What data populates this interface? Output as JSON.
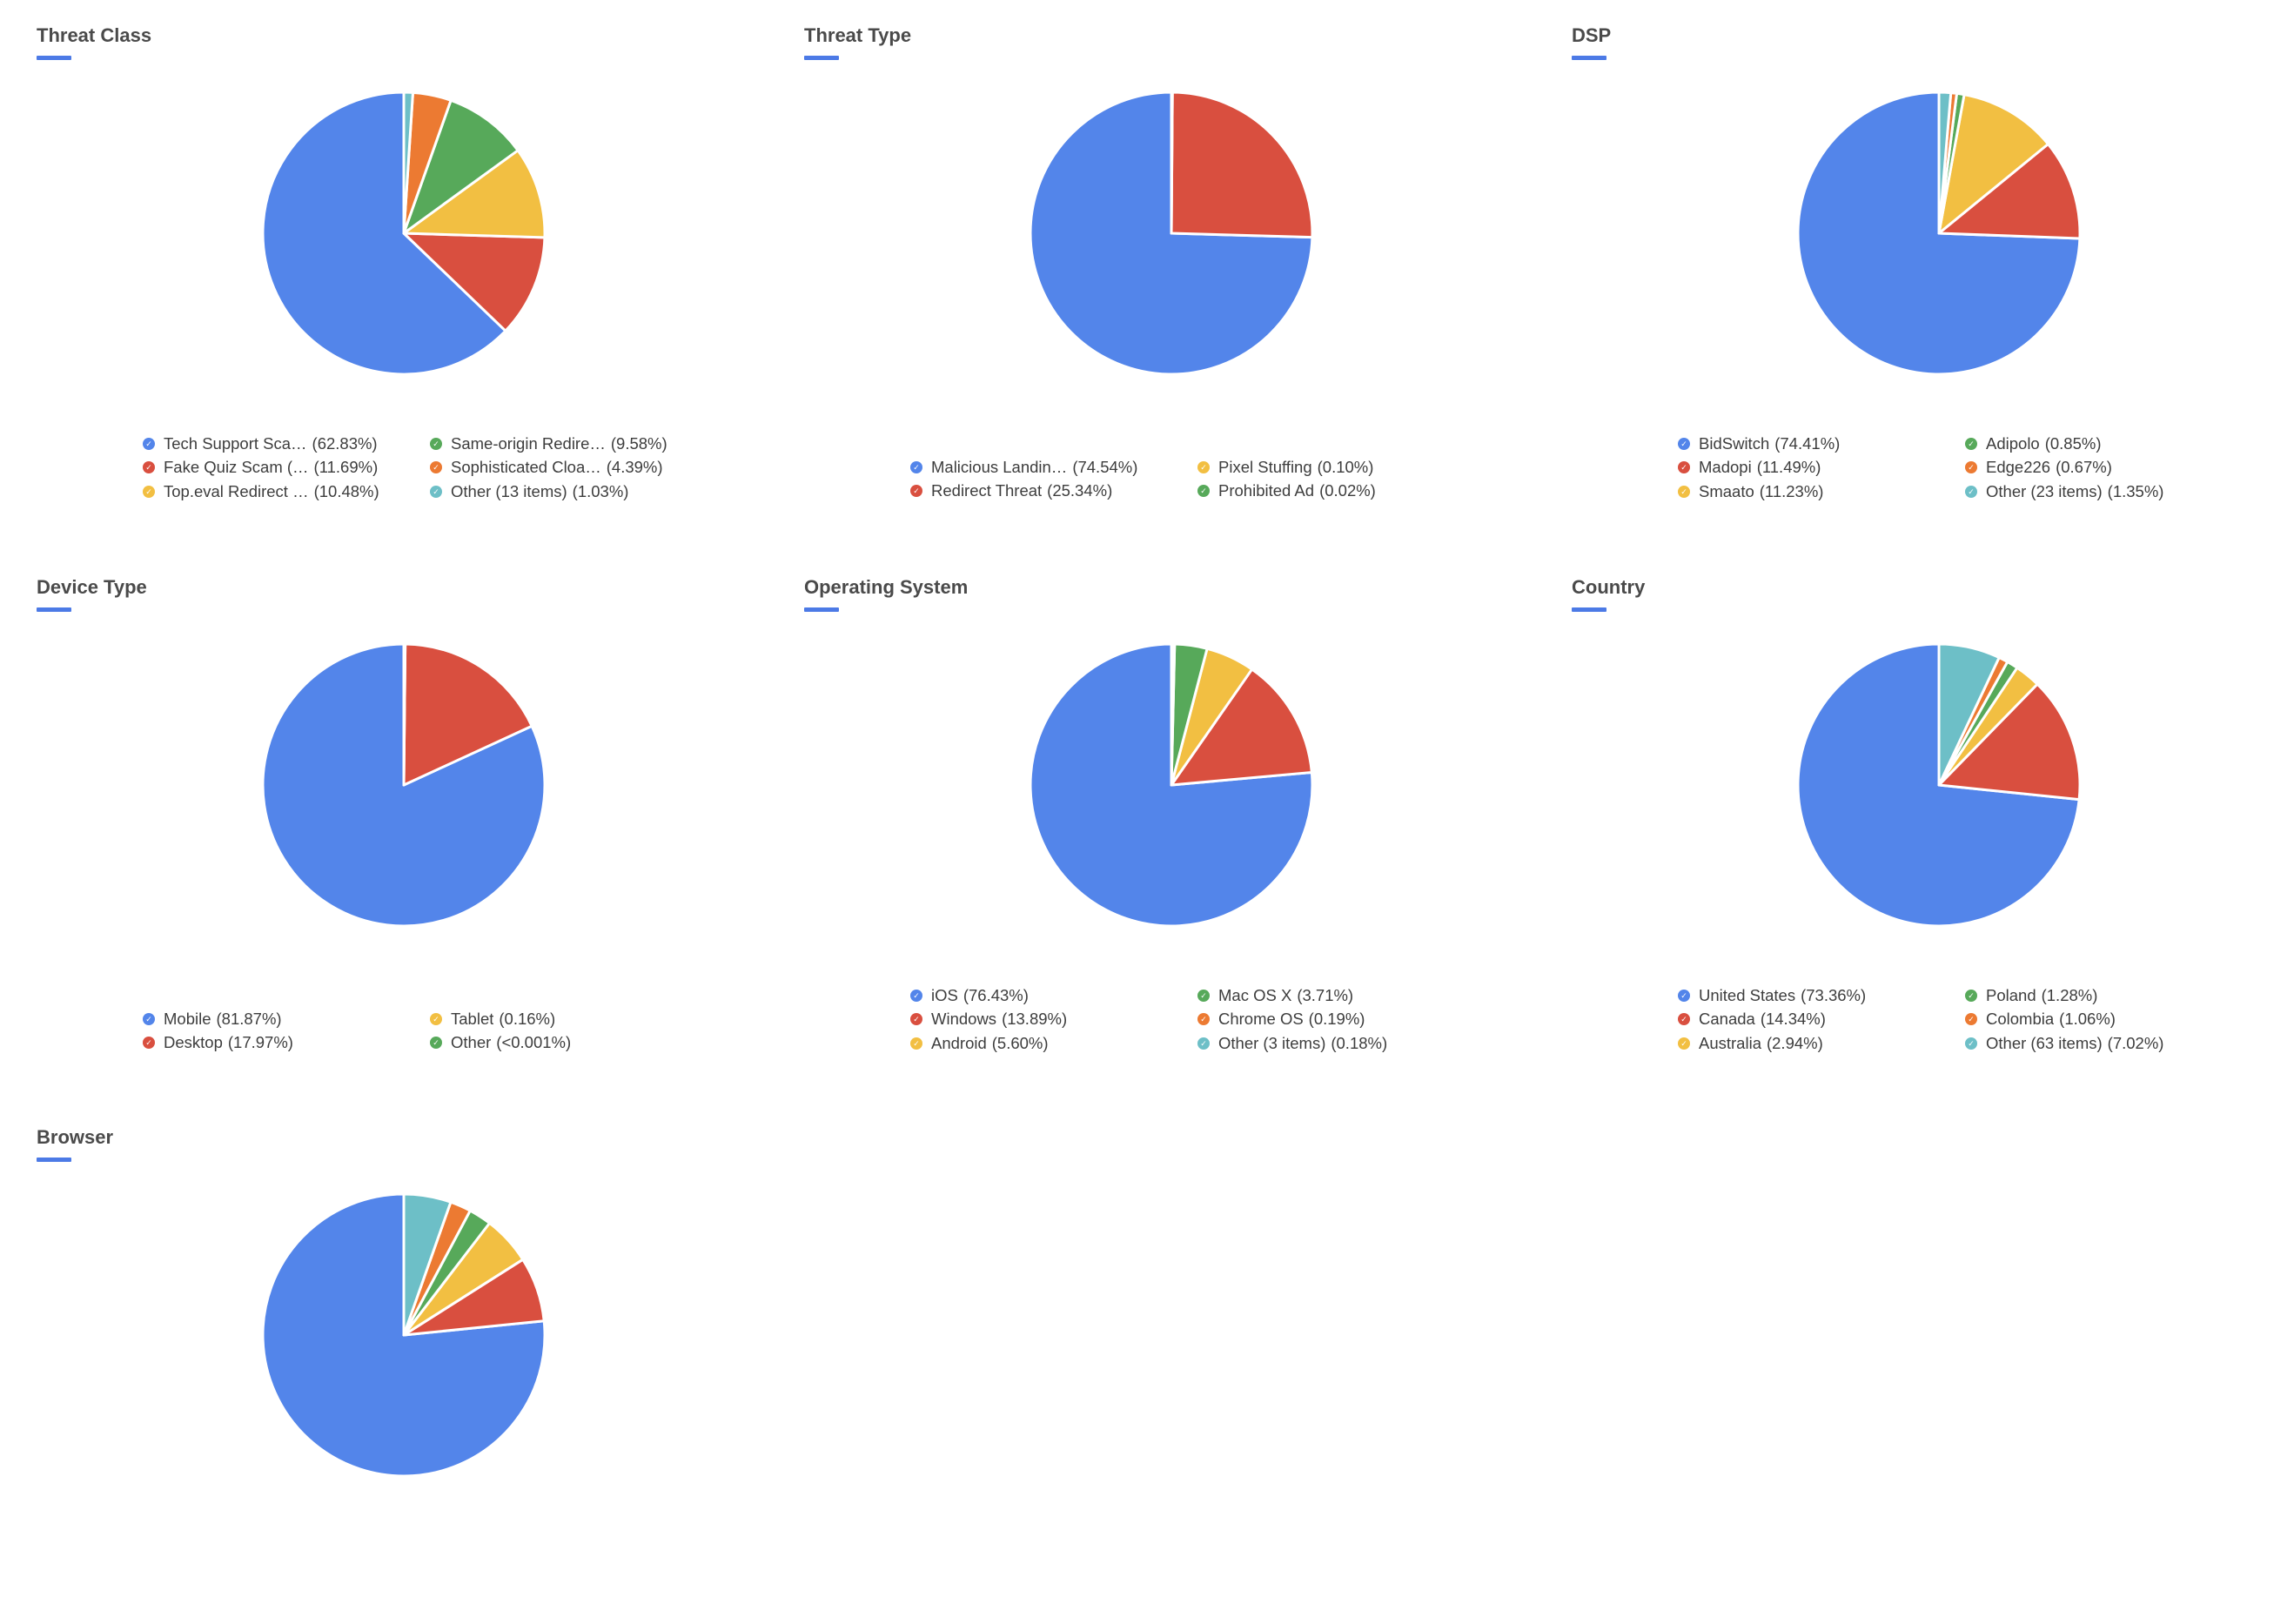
{
  "colors": {
    "blue": "#5385ea",
    "red": "#d94f3f",
    "yellow": "#f2bf42",
    "green": "#57a95a",
    "orange": "#ec7a32",
    "teal": "#6dbfc7",
    "accent": "#4c7ae6"
  },
  "chart_data": [
    {
      "type": "pie",
      "title": "Threat Class",
      "legend_placement": "bottom",
      "slices": [
        {
          "label": "Tech Support Sca…",
          "pct_text": "(62.83%)",
          "value": 62.83,
          "color": "#5385ea"
        },
        {
          "label": "Fake Quiz Scam (…",
          "pct_text": "(11.69%)",
          "value": 11.69,
          "color": "#d94f3f"
        },
        {
          "label": "Top.eval Redirect …",
          "pct_text": "(10.48%)",
          "value": 10.48,
          "color": "#f2bf42"
        },
        {
          "label": "Same-origin Redire…",
          "pct_text": "(9.58%)",
          "value": 9.58,
          "color": "#57a95a"
        },
        {
          "label": "Sophisticated Cloa…",
          "pct_text": "(4.39%)",
          "value": 4.39,
          "color": "#ec7a32"
        },
        {
          "label": "Other (13 items)",
          "pct_text": "(1.03%)",
          "value": 1.03,
          "color": "#6dbfc7"
        }
      ]
    },
    {
      "type": "pie",
      "title": "Threat Type",
      "legend_placement": "bottom",
      "slices": [
        {
          "label": "Malicious Landin…",
          "pct_text": "(74.54%)",
          "value": 74.54,
          "color": "#5385ea"
        },
        {
          "label": "Redirect Threat",
          "pct_text": "(25.34%)",
          "value": 25.34,
          "color": "#d94f3f"
        },
        {
          "label": "Pixel Stuffing",
          "pct_text": "(0.10%)",
          "value": 0.1,
          "color": "#f2bf42"
        },
        {
          "label": "Prohibited Ad",
          "pct_text": "(0.02%)",
          "value": 0.02,
          "color": "#57a95a"
        }
      ]
    },
    {
      "type": "pie",
      "title": "DSP",
      "legend_placement": "bottom",
      "slices": [
        {
          "label": "BidSwitch",
          "pct_text": "(74.41%)",
          "value": 74.41,
          "color": "#5385ea"
        },
        {
          "label": "Madopi",
          "pct_text": "(11.49%)",
          "value": 11.49,
          "color": "#d94f3f"
        },
        {
          "label": "Smaato",
          "pct_text": "(11.23%)",
          "value": 11.23,
          "color": "#f2bf42"
        },
        {
          "label": "Adipolo",
          "pct_text": "(0.85%)",
          "value": 0.85,
          "color": "#57a95a"
        },
        {
          "label": "Edge226",
          "pct_text": "(0.67%)",
          "value": 0.67,
          "color": "#ec7a32"
        },
        {
          "label": "Other (23 items)",
          "pct_text": "(1.35%)",
          "value": 1.35,
          "color": "#6dbfc7"
        }
      ]
    },
    {
      "type": "pie",
      "title": "Device Type",
      "legend_placement": "bottom",
      "slices": [
        {
          "label": "Mobile",
          "pct_text": "(81.87%)",
          "value": 81.87,
          "color": "#5385ea"
        },
        {
          "label": "Desktop",
          "pct_text": "(17.97%)",
          "value": 17.97,
          "color": "#d94f3f"
        },
        {
          "label": "Tablet",
          "pct_text": "(0.16%)",
          "value": 0.16,
          "color": "#f2bf42"
        },
        {
          "label": "Other",
          "pct_text": "(<0.001%)",
          "value": 0.001,
          "color": "#57a95a"
        }
      ]
    },
    {
      "type": "pie",
      "title": "Operating System",
      "legend_placement": "bottom",
      "slices": [
        {
          "label": "iOS",
          "pct_text": "(76.43%)",
          "value": 76.43,
          "color": "#5385ea"
        },
        {
          "label": "Windows",
          "pct_text": "(13.89%)",
          "value": 13.89,
          "color": "#d94f3f"
        },
        {
          "label": "Android",
          "pct_text": "(5.60%)",
          "value": 5.6,
          "color": "#f2bf42"
        },
        {
          "label": "Mac OS X",
          "pct_text": "(3.71%)",
          "value": 3.71,
          "color": "#57a95a"
        },
        {
          "label": "Chrome OS",
          "pct_text": "(0.19%)",
          "value": 0.19,
          "color": "#ec7a32"
        },
        {
          "label": "Other (3 items)",
          "pct_text": "(0.18%)",
          "value": 0.18,
          "color": "#6dbfc7"
        }
      ]
    },
    {
      "type": "pie",
      "title": "Country",
      "legend_placement": "bottom",
      "slices": [
        {
          "label": "United States",
          "pct_text": "(73.36%)",
          "value": 73.36,
          "color": "#5385ea"
        },
        {
          "label": "Canada",
          "pct_text": "(14.34%)",
          "value": 14.34,
          "color": "#d94f3f"
        },
        {
          "label": "Australia",
          "pct_text": "(2.94%)",
          "value": 2.94,
          "color": "#f2bf42"
        },
        {
          "label": "Poland",
          "pct_text": "(1.28%)",
          "value": 1.28,
          "color": "#57a95a"
        },
        {
          "label": "Colombia",
          "pct_text": "(1.06%)",
          "value": 1.06,
          "color": "#ec7a32"
        },
        {
          "label": "Other (63 items)",
          "pct_text": "(7.02%)",
          "value": 7.02,
          "color": "#6dbfc7"
        }
      ]
    },
    {
      "type": "pie",
      "title": "Browser",
      "legend_placement": "bottom",
      "slices": [
        {
          "label": "",
          "pct_text": "",
          "value": 76.6,
          "color": "#5385ea"
        },
        {
          "label": "",
          "pct_text": "",
          "value": 7.4,
          "color": "#d94f3f"
        },
        {
          "label": "",
          "pct_text": "",
          "value": 5.6,
          "color": "#f2bf42"
        },
        {
          "label": "",
          "pct_text": "",
          "value": 2.6,
          "color": "#57a95a"
        },
        {
          "label": "",
          "pct_text": "",
          "value": 2.4,
          "color": "#ec7a32"
        },
        {
          "label": "",
          "pct_text": "",
          "value": 5.4,
          "color": "#6dbfc7"
        }
      ]
    }
  ]
}
